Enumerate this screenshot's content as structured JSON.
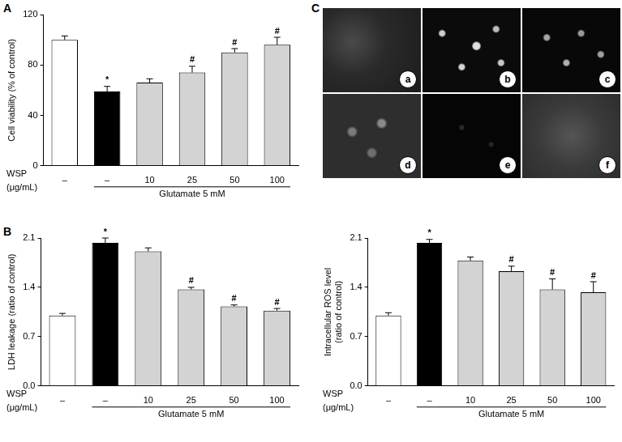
{
  "panel_labels": [
    "A",
    "B",
    "C"
  ],
  "images": {
    "labels": [
      "a",
      "b",
      "c",
      "d",
      "e",
      "f"
    ]
  },
  "chart_data": [
    {
      "type": "bar",
      "y_label": "Cell viability (% of control)",
      "categories": [
        "–",
        "–",
        "10",
        "25",
        "50",
        "100"
      ],
      "values": [
        100,
        59,
        66,
        74,
        90,
        96
      ],
      "errors": [
        3,
        4,
        3,
        5,
        3,
        6
      ],
      "significance": [
        null,
        "*",
        null,
        "#",
        "#",
        "#"
      ],
      "colors": [
        "#ffffff",
        "#000000",
        "#d3d3d3",
        "#d3d3d3",
        "#d3d3d3",
        "#d3d3d3"
      ],
      "x_row_label": [
        "WSP",
        "(μg/mL)"
      ],
      "treatment": {
        "label": "Glutamate 5 mM",
        "applied": [
          false,
          true,
          true,
          true,
          true,
          true
        ]
      },
      "ylim": [
        0,
        120
      ],
      "yticks": [
        0,
        40,
        80,
        120
      ],
      "grid": false
    },
    {
      "type": "bar",
      "y_label": "LDH leakage (ratio of control)",
      "categories": [
        "–",
        "–",
        "10",
        "25",
        "50",
        "100"
      ],
      "values": [
        1.0,
        2.03,
        1.91,
        1.37,
        1.13,
        1.07
      ],
      "errors": [
        0.03,
        0.07,
        0.05,
        0.03,
        0.02,
        0.03
      ],
      "significance": [
        null,
        "*",
        null,
        "#",
        "#",
        "#"
      ],
      "colors": [
        "#ffffff",
        "#000000",
        "#d3d3d3",
        "#d3d3d3",
        "#d3d3d3",
        "#d3d3d3"
      ],
      "x_row_label": [
        "WSP",
        "(μg/mL)"
      ],
      "treatment": {
        "label": "Glutamate 5 mM",
        "applied": [
          false,
          true,
          true,
          true,
          true,
          true
        ]
      },
      "ylim": [
        0,
        2.1
      ],
      "yticks": [
        {
          "value": 0,
          "label": "0.0"
        },
        0.7,
        1.4,
        2.1
      ],
      "grid": false
    },
    {
      "type": "bar",
      "y_label": [
        "Intracellular ROS level",
        "(ratio of control)"
      ],
      "categories": [
        "–",
        "–",
        "10",
        "25",
        "50",
        "100"
      ],
      "values": [
        1.0,
        2.03,
        1.78,
        1.63,
        1.37,
        1.33
      ],
      "errors": [
        0.04,
        0.05,
        0.05,
        0.07,
        0.15,
        0.15
      ],
      "significance": [
        null,
        "*",
        null,
        "#",
        "#",
        "#"
      ],
      "colors": [
        "#ffffff",
        "#000000",
        "#d3d3d3",
        "#d3d3d3",
        "#d3d3d3",
        "#d3d3d3"
      ],
      "x_row_label": [
        "WSP",
        "(μg/mL)"
      ],
      "treatment": {
        "label": "Glutamate 5 mM",
        "applied": [
          false,
          true,
          true,
          true,
          true,
          true
        ]
      },
      "ylim": [
        0,
        2.1
      ],
      "yticks": [
        {
          "value": 0,
          "label": "0.0"
        },
        0.7,
        1.4,
        2.1
      ],
      "grid": false
    }
  ]
}
